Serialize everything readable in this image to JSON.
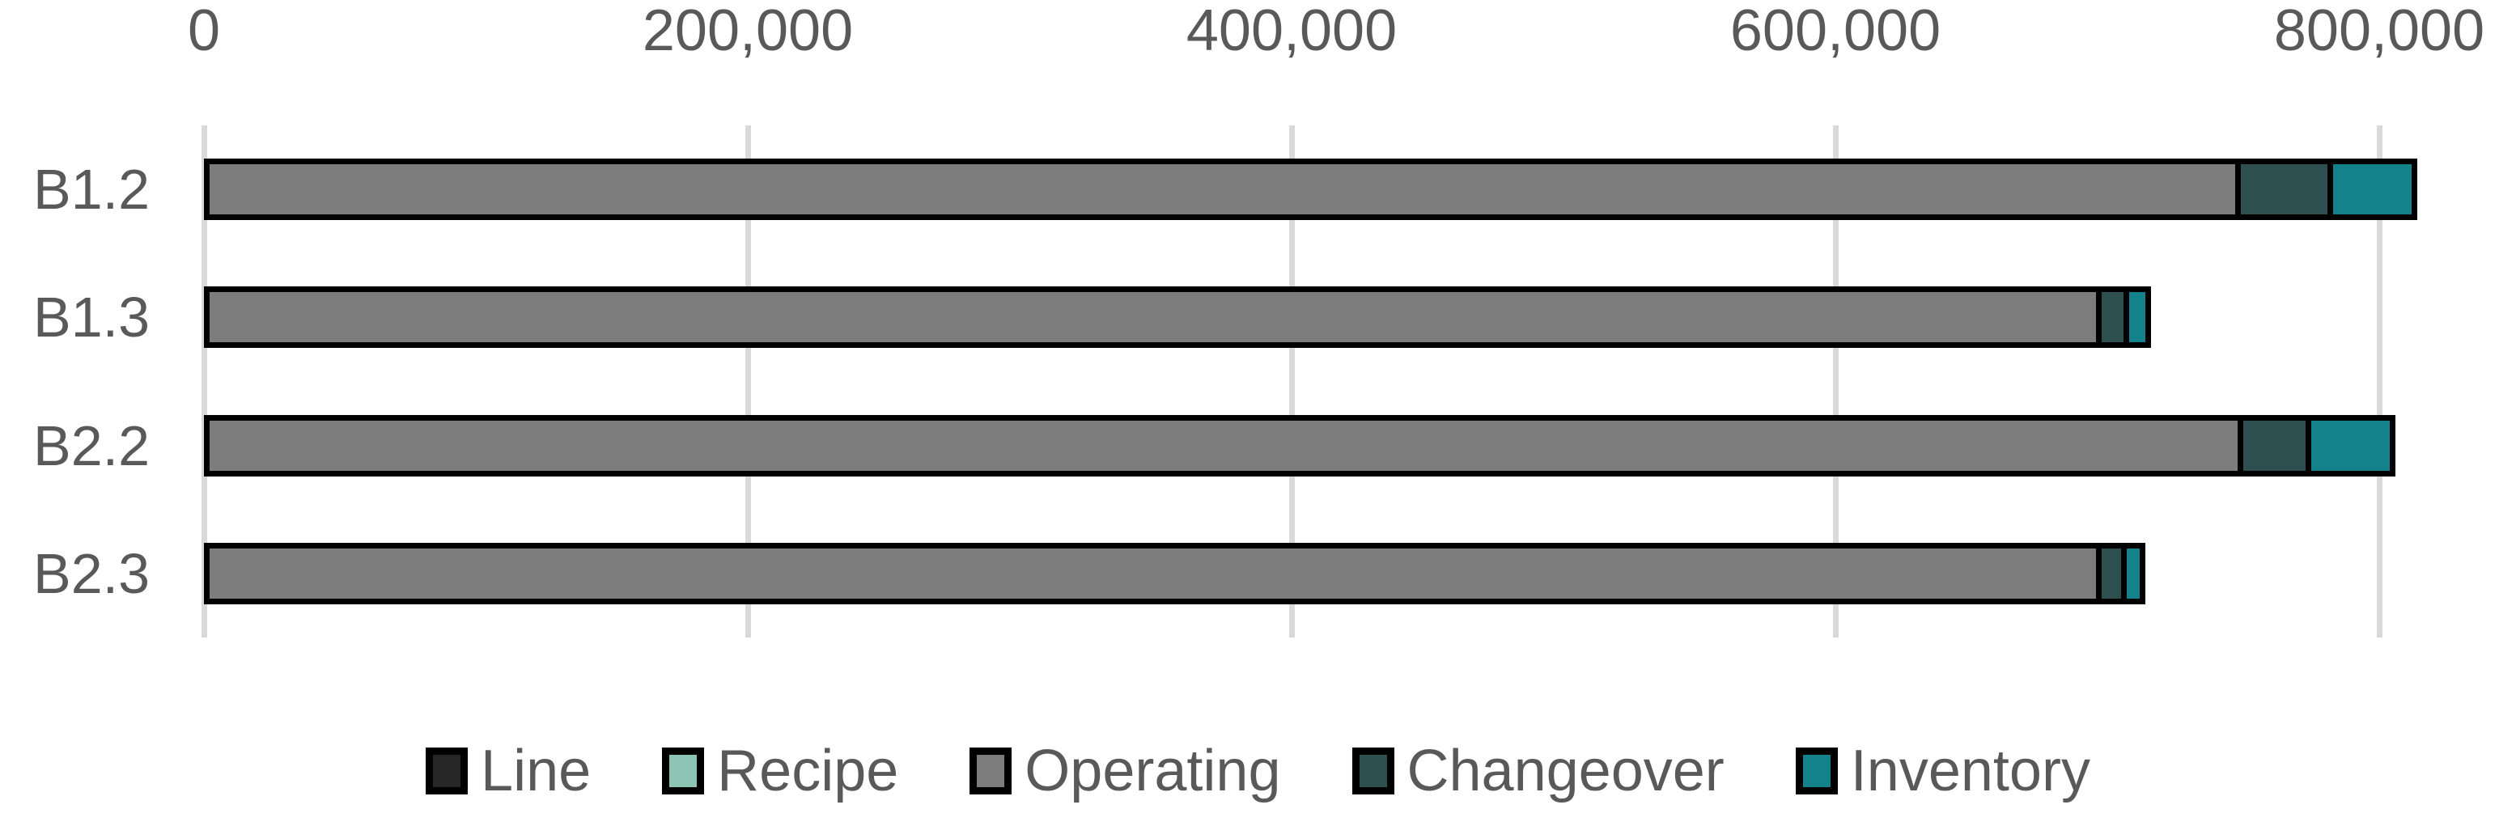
{
  "chart_data": {
    "type": "bar",
    "orientation": "horizontal",
    "stacked": true,
    "title": "",
    "categories": [
      "B1.2",
      "B1.3",
      "B2.2",
      "B2.3"
    ],
    "series": [
      {
        "name": "Line",
        "color": "#262626",
        "values": [
          0,
          0,
          0,
          0
        ]
      },
      {
        "name": "Recipe",
        "color": "#8CC5B3",
        "values": [
          0,
          0,
          0,
          0
        ]
      },
      {
        "name": "Operating",
        "color": "#7C7C7C",
        "values": [
          749000,
          698000,
          750000,
          698000
        ]
      },
      {
        "name": "Changeover",
        "color": "#2D4F50",
        "values": [
          34000,
          10000,
          25000,
          9000
        ]
      },
      {
        "name": "Inventory",
        "color": "#13828B",
        "values": [
          31000,
          8000,
          31000,
          7000
        ]
      }
    ],
    "totals": [
      814000,
      716000,
      806000,
      714000
    ],
    "x_axis": {
      "position": "top",
      "min": 0,
      "max": 820000,
      "major_unit": 200000,
      "ticks": [
        0,
        200000,
        400000,
        600000,
        800000
      ],
      "tick_labels": [
        "0",
        "200,000",
        "400,000",
        "600,000",
        "800,000"
      ],
      "gridlines": true
    },
    "legend": {
      "position": "bottom",
      "entries": [
        "Line",
        "Recipe",
        "Operating",
        "Changeover",
        "Inventory"
      ]
    },
    "colors": {
      "background": "#FFFFFF",
      "text": "#595959",
      "gridline": "#D9D9D9",
      "bar_border": "#000000"
    }
  }
}
